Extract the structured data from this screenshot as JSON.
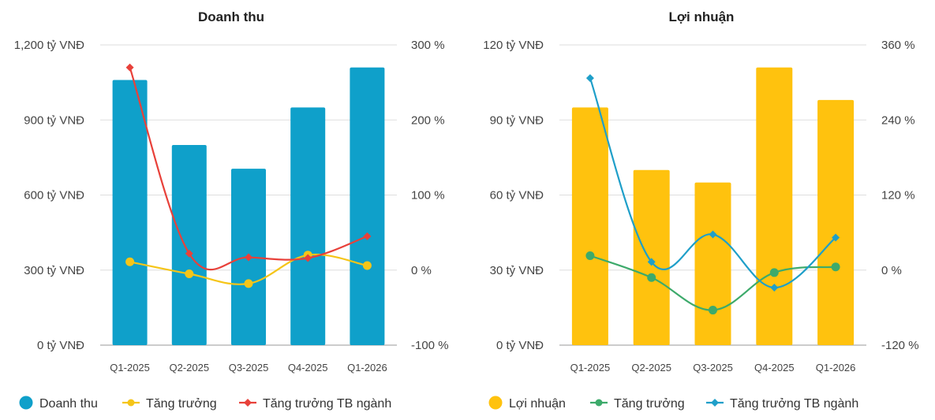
{
  "chart_data": [
    {
      "type": "bar",
      "title": "Doanh thu",
      "categories": [
        "Q1-2025",
        "Q2-2025",
        "Q3-2025",
        "Q4-2025",
        "Q1-2026"
      ],
      "y_left": {
        "ticks": [
          "0 tỷ VNĐ",
          "300 tỷ VNĐ",
          "600 tỷ VNĐ",
          "900 tỷ VNĐ",
          "1,200 tỷ VNĐ"
        ],
        "range": [
          0,
          1200
        ],
        "unit": "tỷ VNĐ"
      },
      "y_right": {
        "ticks": [
          "-100 %",
          "0 %",
          "100 %",
          "200 %",
          "300 %"
        ],
        "range": [
          -100,
          300
        ],
        "unit": "%"
      },
      "series": [
        {
          "name": "Doanh thu",
          "kind": "bar",
          "axis": "left",
          "color": "#0fa0ca",
          "values": [
            1060,
            800,
            705,
            950,
            1110
          ]
        },
        {
          "name": "Tăng trưởng",
          "kind": "line",
          "axis": "right",
          "color": "#f5c518",
          "marker": "circle",
          "values": [
            11,
            -5,
            -18,
            20,
            6
          ]
        },
        {
          "name": "Tăng trưởng TB ngành",
          "kind": "line",
          "axis": "right",
          "color": "#e8413a",
          "marker": "diamond",
          "values": [
            270,
            22,
            17,
            16,
            45
          ]
        }
      ],
      "legend_position": "bottom",
      "grid": true
    },
    {
      "type": "bar",
      "title": "Lợi nhuận",
      "categories": [
        "Q1-2025",
        "Q2-2025",
        "Q3-2025",
        "Q4-2025",
        "Q1-2026"
      ],
      "y_left": {
        "ticks": [
          "0 tỷ VNĐ",
          "30 tỷ VNĐ",
          "60 tỷ VNĐ",
          "90 tỷ VNĐ",
          "120 tỷ VNĐ"
        ],
        "range": [
          0,
          120
        ],
        "unit": "tỷ VNĐ"
      },
      "y_right": {
        "ticks": [
          "-120 %",
          "0 %",
          "120 %",
          "240 %",
          "360 %"
        ],
        "range": [
          -120,
          360
        ],
        "unit": "%"
      },
      "series": [
        {
          "name": "Lợi nhuận",
          "kind": "bar",
          "axis": "left",
          "color": "#ffc20e",
          "values": [
            95,
            70,
            65,
            111,
            98
          ]
        },
        {
          "name": "Tăng trưởng",
          "kind": "line",
          "axis": "right",
          "color": "#3daa6b",
          "marker": "circle",
          "values": [
            23,
            -12,
            -64,
            -4,
            5
          ]
        },
        {
          "name": "Tăng trưởng TB ngành",
          "kind": "line",
          "axis": "right",
          "color": "#1f9fc9",
          "marker": "diamond",
          "values": [
            307,
            13,
            57,
            -28,
            52
          ]
        }
      ],
      "legend_position": "bottom",
      "grid": true
    }
  ]
}
